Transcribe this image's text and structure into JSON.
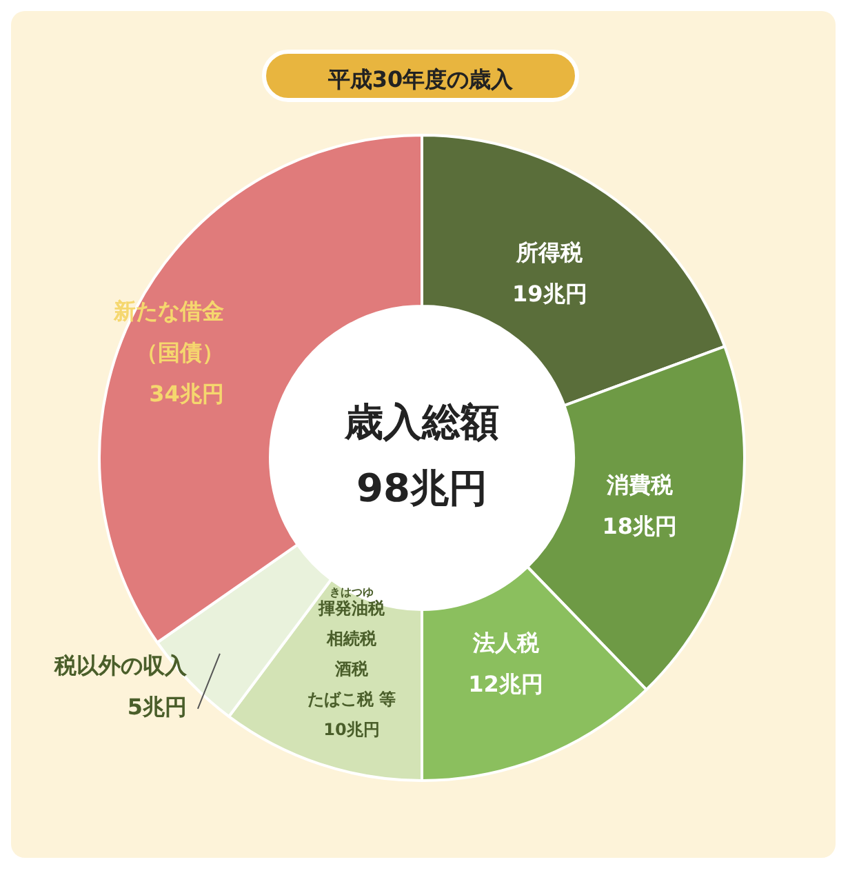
{
  "chart_data": {
    "type": "donut",
    "title": "平成30年度の歳入",
    "categories": [
      "所得税",
      "消費税",
      "法人税",
      "揮発油税相続税酒税たばこ税 等",
      "税以外の収入",
      "新たな借金（国債）"
    ],
    "values": [
      19,
      18,
      12,
      10,
      5,
      34
    ],
    "value_labels": [
      "19兆円",
      "18兆円",
      "12兆円",
      "10兆円",
      "5兆円",
      "34兆円"
    ],
    "colors": [
      "#5a6e3a",
      "#6e9a45",
      "#8bbf5e",
      "#d3e3b5",
      "#e9f2dc",
      "#e07b7b"
    ],
    "annotations": [
      "歳入総額",
      "98兆円",
      "きはつゆ"
    ],
    "legend": false
  }
}
